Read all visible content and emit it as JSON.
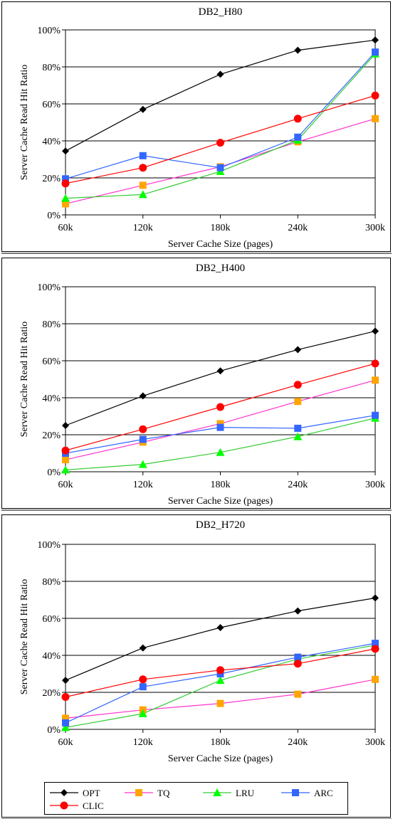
{
  "chart_data": [
    {
      "type": "line",
      "title": "DB2_H80",
      "xlabel": "Server Cache Size (pages)",
      "ylabel": "Server Cache Read Hit Ratio",
      "categories": [
        "60k",
        "120k",
        "180k",
        "240k",
        "300k"
      ],
      "yticks": [
        "0%",
        "20%",
        "40%",
        "60%",
        "80%",
        "100%"
      ],
      "ylim": [
        0,
        100
      ],
      "grid": "horizontal",
      "series": [
        {
          "name": "OPT",
          "values": [
            34.5,
            57,
            76,
            89,
            94.5
          ]
        },
        {
          "name": "TQ",
          "values": [
            6,
            16,
            26,
            39.5,
            52
          ]
        },
        {
          "name": "LRU",
          "values": [
            9,
            11,
            23.5,
            40.5,
            87
          ]
        },
        {
          "name": "ARC",
          "values": [
            19.5,
            32,
            25.5,
            42,
            88
          ]
        },
        {
          "name": "CLIC",
          "values": [
            17,
            25.5,
            39,
            52,
            64.5
          ]
        }
      ]
    },
    {
      "type": "line",
      "title": "DB2_H400",
      "xlabel": "Server Cache Size (pages)",
      "ylabel": "Server Cache Read Hit Ratio",
      "categories": [
        "60k",
        "120k",
        "180k",
        "240k",
        "300k"
      ],
      "yticks": [
        "0%",
        "20%",
        "40%",
        "60%",
        "80%",
        "100%"
      ],
      "ylim": [
        0,
        100
      ],
      "grid": "horizontal",
      "series": [
        {
          "name": "OPT",
          "values": [
            25,
            41,
            54.5,
            66,
            76
          ]
        },
        {
          "name": "TQ",
          "values": [
            6.5,
            16,
            26,
            38,
            49.5
          ]
        },
        {
          "name": "LRU",
          "values": [
            1,
            4,
            10.5,
            19,
            29
          ]
        },
        {
          "name": "ARC",
          "values": [
            10,
            17.5,
            24,
            23.5,
            30.5
          ]
        },
        {
          "name": "CLIC",
          "values": [
            11.5,
            23,
            35,
            47,
            58.5
          ]
        }
      ]
    },
    {
      "type": "line",
      "title": "DB2_H720",
      "xlabel": "Server Cache Size (pages)",
      "ylabel": "Server Cache Read Hit Ratio",
      "categories": [
        "60k",
        "120k",
        "180k",
        "240k",
        "300k"
      ],
      "yticks": [
        "0%",
        "20%",
        "40%",
        "60%",
        "80%",
        "100%"
      ],
      "ylim": [
        0,
        100
      ],
      "grid": "horizontal",
      "series": [
        {
          "name": "OPT",
          "values": [
            26.5,
            44,
            55,
            64,
            71
          ]
        },
        {
          "name": "TQ",
          "values": [
            6,
            10.5,
            14,
            19,
            27
          ]
        },
        {
          "name": "LRU",
          "values": [
            1,
            8.5,
            26.5,
            38,
            45.5
          ]
        },
        {
          "name": "ARC",
          "values": [
            3.5,
            23,
            30,
            39,
            46.5
          ]
        },
        {
          "name": "CLIC",
          "values": [
            17.5,
            27,
            32,
            35.5,
            43.5
          ]
        }
      ]
    }
  ],
  "legend": {
    "placement": "bottom",
    "items": [
      {
        "name": "OPT",
        "color": "#000000",
        "marker": "diamond"
      },
      {
        "name": "TQ",
        "color": "#ff33cc",
        "marker_color": "#ffa500",
        "marker": "square"
      },
      {
        "name": "LRU",
        "color": "#33cc33",
        "marker_color": "#00ff00",
        "marker": "triangle"
      },
      {
        "name": "ARC",
        "color": "#3366ff",
        "marker_color": "#3366ff",
        "marker": "square"
      },
      {
        "name": "CLIC",
        "color": "#ff0000",
        "marker_color": "#ff0000",
        "marker": "circle"
      }
    ]
  }
}
